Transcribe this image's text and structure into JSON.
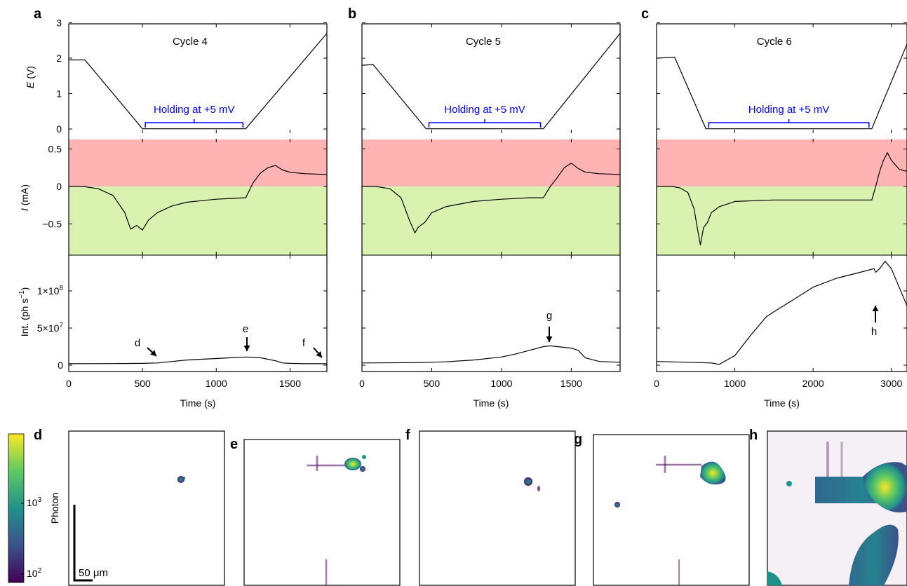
{
  "panel_letters": {
    "a": "a",
    "b": "b",
    "c": "c",
    "d": "d",
    "e": "e",
    "f": "f",
    "g": "g",
    "h": "h"
  },
  "colors": {
    "anodic_band": "#ffb3b3",
    "cathodic_band": "#d9f2b0",
    "holding_text": "#0000ff",
    "line": "#000000"
  },
  "cycles": [
    {
      "title": "Cycle 4",
      "holding_label": "Holding at +5 mV"
    },
    {
      "title": "Cycle 5",
      "holding_label": "Holding at +5 mV"
    },
    {
      "title": "Cycle 6",
      "holding_label": "Holding at +5 mV"
    }
  ],
  "axes": {
    "E_label_italic": "E",
    "E_label_unit": " (V)",
    "I_label_italic": "I",
    "I_label_unit": " (mA)",
    "int_label": "Int. (ph s",
    "int_label_sup": "−1",
    "int_label_end": ")",
    "time_label": "Time (s)",
    "E_ticks": [
      "0",
      "1",
      "2",
      "3"
    ],
    "I_ticks": [
      "−0.5",
      "0",
      "0.5"
    ],
    "int_ticks": [
      "0",
      "5×10",
      "1×10"
    ],
    "int_ticks_sup": [
      "",
      "7",
      "8"
    ]
  },
  "time_ticks": [
    [
      "0",
      "500",
      "1000",
      "1500"
    ],
    [
      "0",
      "500",
      "1000",
      "1500"
    ],
    [
      "0",
      "1000",
      "2000",
      "3000"
    ]
  ],
  "annotations": {
    "d": "d",
    "e": "e",
    "f": "f",
    "g": "g",
    "h": "h"
  },
  "colorbar": {
    "label": "Photon",
    "tick_high": "10",
    "tick_high_sup": "3",
    "tick_low": "10",
    "tick_low_sup": "2",
    "scale": "log"
  },
  "scale_bar": {
    "label": "50 μm"
  },
  "chart_data": [
    {
      "type": "line",
      "title": "Cycle 4",
      "xlabel": "Time (s)",
      "xlim": [
        0,
        1750
      ],
      "series": [
        {
          "panel": "E",
          "ylabel": "E (V)",
          "ylim": [
            0,
            3
          ],
          "x": [
            0,
            110,
            500,
            1200,
            1750
          ],
          "values": [
            1.95,
            1.95,
            0.005,
            0.005,
            2.7
          ]
        },
        {
          "panel": "I",
          "ylabel": "I (mA)",
          "x": [
            0,
            100,
            200,
            300,
            380,
            420,
            460,
            500,
            540,
            600,
            700,
            800,
            900,
            1000,
            1100,
            1200,
            1250,
            1300,
            1350,
            1400,
            1450,
            1500,
            1600,
            1750
          ],
          "values": [
            0,
            0,
            -0.03,
            -0.12,
            -0.35,
            -0.57,
            -0.52,
            -0.58,
            -0.45,
            -0.35,
            -0.26,
            -0.21,
            -0.19,
            -0.17,
            -0.16,
            -0.15,
            0.05,
            0.18,
            0.25,
            0.28,
            0.22,
            0.19,
            0.17,
            0.16
          ]
        },
        {
          "panel": "Int",
          "ylabel": "Int. (ph s−1)",
          "x": [
            0,
            300,
            500,
            600,
            700,
            800,
            900,
            1000,
            1100,
            1200,
            1300,
            1400,
            1450,
            1500,
            1600,
            1750
          ],
          "values": [
            2000000.0,
            2200000.0,
            2500000.0,
            3000000.0,
            5000000.0,
            7000000.0,
            8000000.0,
            9000000.0,
            10000000.0,
            11000000.0,
            10000000.0,
            6000000.0,
            3000000.0,
            2500000.0,
            2000000.0,
            2000000.0
          ]
        }
      ]
    },
    {
      "type": "line",
      "title": "Cycle 5",
      "xlabel": "Time (s)",
      "xlim": [
        0,
        1850
      ],
      "series": [
        {
          "panel": "E",
          "ylabel": "E (V)",
          "ylim": [
            0,
            3
          ],
          "x": [
            0,
            80,
            460,
            1300,
            1850
          ],
          "values": [
            1.8,
            1.82,
            0.005,
            0.005,
            2.7
          ]
        },
        {
          "panel": "I",
          "ylabel": "I (mA)",
          "x": [
            0,
            100,
            200,
            280,
            340,
            380,
            400,
            420,
            450,
            500,
            600,
            800,
            1000,
            1200,
            1300,
            1350,
            1400,
            1450,
            1500,
            1550,
            1600,
            1700,
            1850
          ],
          "values": [
            0,
            0,
            -0.03,
            -0.15,
            -0.45,
            -0.62,
            -0.55,
            -0.52,
            -0.48,
            -0.35,
            -0.27,
            -0.2,
            -0.17,
            -0.15,
            -0.15,
            0.0,
            0.12,
            0.25,
            0.31,
            0.24,
            0.19,
            0.17,
            0.16
          ]
        },
        {
          "panel": "Int",
          "ylabel": "Int. (ph s−1)",
          "x": [
            0,
            400,
            600,
            800,
            1000,
            1100,
            1200,
            1300,
            1350,
            1400,
            1450,
            1500,
            1550,
            1600,
            1700,
            1850
          ],
          "values": [
            3000000.0,
            3500000.0,
            4500000.0,
            7000000.0,
            11000000.0,
            15000000.0,
            20000000.0,
            25000000.0,
            26000000.0,
            25000000.0,
            24000000.0,
            23000000.0,
            20000000.0,
            10000000.0,
            5000000.0,
            4000000.0
          ]
        }
      ]
    },
    {
      "type": "line",
      "title": "Cycle 6",
      "xlabel": "Time (s)",
      "xlim": [
        0,
        3200
      ],
      "series": [
        {
          "panel": "E",
          "ylabel": "E (V)",
          "ylim": [
            0,
            3
          ],
          "x": [
            0,
            230,
            630,
            2750,
            3200
          ],
          "values": [
            2.0,
            2.03,
            0.005,
            0.005,
            2.4
          ]
        },
        {
          "panel": "I",
          "ylabel": "I (mA)",
          "x": [
            0,
            200,
            300,
            400,
            480,
            520,
            560,
            600,
            650,
            700,
            800,
            1000,
            1500,
            2000,
            2500,
            2750,
            2800,
            2850,
            2900,
            2950,
            3000,
            3100,
            3200
          ],
          "values": [
            0,
            0,
            -0.02,
            -0.08,
            -0.3,
            -0.55,
            -0.78,
            -0.55,
            -0.48,
            -0.35,
            -0.27,
            -0.2,
            -0.18,
            -0.18,
            -0.18,
            -0.18,
            0.0,
            0.2,
            0.35,
            0.45,
            0.35,
            0.23,
            0.2
          ]
        },
        {
          "panel": "Int",
          "ylabel": "Int. (ph s−1)",
          "x": [
            0,
            400,
            700,
            800,
            1000,
            1200,
            1400,
            1500,
            1700,
            2000,
            2300,
            2600,
            2780,
            2800,
            2850,
            2920,
            3000,
            3100,
            3200
          ],
          "values": [
            5000000.0,
            4000000.0,
            3000000.0,
            1000000.0,
            13000000.0,
            40000000.0,
            65000000.0,
            72000000.0,
            85000000.0,
            105000000.0,
            117000000.0,
            125000000.0,
            130000000.0,
            125000000.0,
            130000000.0,
            140000000.0,
            130000000.0,
            105000000.0,
            80000000.0
          ]
        }
      ]
    }
  ]
}
